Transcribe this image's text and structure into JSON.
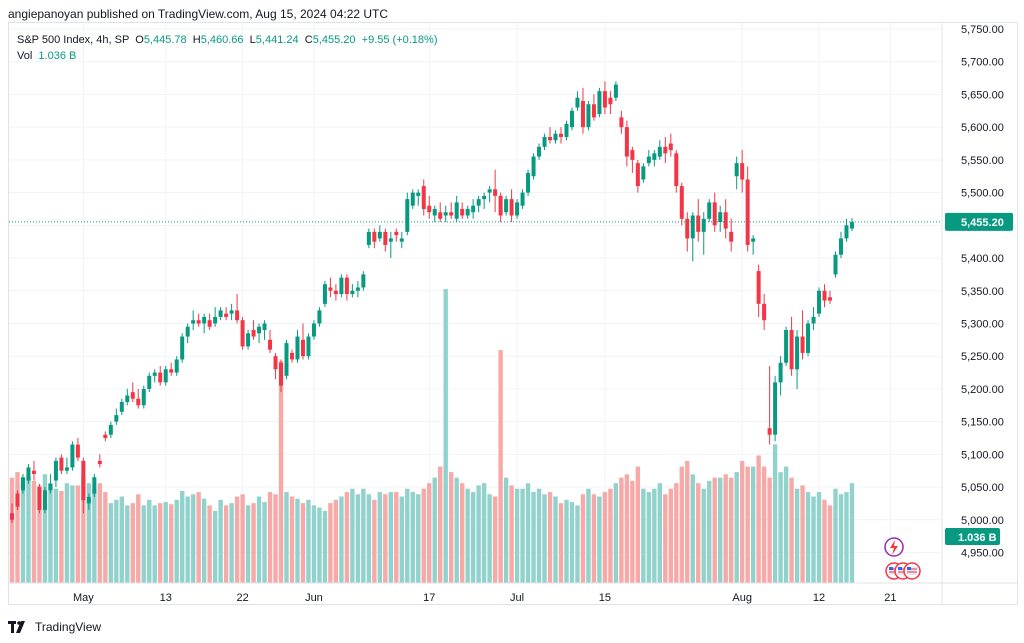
{
  "header": {
    "published": "angiepanoyan published on TradingView.com, Aug 15, 2024 04:22 UTC"
  },
  "legend": {
    "symbol": "S&P 500 Index, 4h, SP",
    "o_label": "O",
    "o_value": "5,445.78",
    "h_label": "H",
    "h_value": "5,460.66",
    "l_label": "L",
    "l_value": "5,441.24",
    "c_label": "C",
    "c_value": "5,455.20",
    "change": "+9.55 (+0.18%)",
    "vol_label": "Vol",
    "vol_value": "1.036 B"
  },
  "footer": {
    "brand": "TradingView"
  },
  "colors": {
    "up": "#089981",
    "down": "#f23645",
    "vol_up": "#92d2cc",
    "vol_down": "#f7a9a7",
    "price_line": "#089981",
    "grid": "#f0f3fa",
    "axis_text": "#131722"
  },
  "chart_data": {
    "type": "candlestick",
    "title": "S&P 500 Index, 4h, SP",
    "ylim": [
      4910,
      5760
    ],
    "y_ticks": [
      4950,
      5000,
      5050,
      5100,
      5150,
      5200,
      5250,
      5300,
      5350,
      5400,
      5450,
      5500,
      5550,
      5600,
      5650,
      5700,
      5750
    ],
    "y_tick_labels": [
      "4,950.00",
      "5,000.00",
      "5,050.00",
      "5,100.00",
      "5,150.00",
      "5,200.00",
      "5,250.00",
      "5,300.00",
      "5,350.00",
      "5,400.00",
      "5,450.00",
      "5,500.00",
      "5,550.00",
      "5,600.00",
      "5,650.00",
      "5,700.00",
      "5,750.00"
    ],
    "x_tick_labels": [
      {
        "label": "May",
        "bar": 13
      },
      {
        "label": "13",
        "bar": 28
      },
      {
        "label": "22",
        "bar": 42
      },
      {
        "label": "Jun",
        "bar": 55
      },
      {
        "label": "17",
        "bar": 76
      },
      {
        "label": "Jul",
        "bar": 92
      },
      {
        "label": "15",
        "bar": 108
      },
      {
        "label": "Aug",
        "bar": 133
      },
      {
        "label": "12",
        "bar": 147
      },
      {
        "label": "21",
        "bar": 160
      }
    ],
    "last_price": 5455.2,
    "last_price_label": "5,455.20",
    "last_volume_label": "1.036 B",
    "volume_ylim": [
      0,
      1.1
    ],
    "candles": [
      [
        5010,
        5025,
        4995,
        5000,
        0.95
      ],
      [
        5040,
        5045,
        5015,
        5020,
        1.0
      ],
      [
        5045,
        5070,
        5040,
        5065,
        0.95
      ],
      [
        5060,
        5085,
        5055,
        5080,
        0.96
      ],
      [
        5075,
        5090,
        5060,
        5070,
        0.92
      ],
      [
        5050,
        5055,
        5010,
        5015,
        0.88
      ],
      [
        5015,
        5050,
        5010,
        5045,
        0.98
      ],
      [
        5045,
        5070,
        5040,
        5055,
        0.9
      ],
      [
        5060,
        5095,
        5050,
        5090,
        0.85
      ],
      [
        5095,
        5100,
        5070,
        5075,
        0.83
      ],
      [
        5075,
        5095,
        5070,
        5080,
        0.9
      ],
      [
        5080,
        5120,
        5075,
        5115,
        0.88
      ],
      [
        5115,
        5125,
        5090,
        5095,
        0.88
      ],
      [
        5090,
        5095,
        5010,
        5030,
        0.95
      ],
      [
        5025,
        5040,
        5015,
        5035,
        0.9
      ],
      [
        5040,
        5070,
        5035,
        5065,
        0.85
      ],
      [
        5090,
        5100,
        5080,
        5085,
        0.9
      ],
      [
        5130,
        5135,
        5120,
        5125,
        0.82
      ],
      [
        5130,
        5150,
        5125,
        5145,
        0.72
      ],
      [
        5150,
        5170,
        5145,
        5160,
        0.75
      ],
      [
        5165,
        5185,
        5160,
        5180,
        0.78
      ],
      [
        5180,
        5200,
        5175,
        5190,
        0.7
      ],
      [
        5195,
        5210,
        5180,
        5185,
        0.72
      ],
      [
        5185,
        5200,
        5170,
        5175,
        0.8
      ],
      [
        5175,
        5205,
        5170,
        5200,
        0.7
      ],
      [
        5200,
        5225,
        5195,
        5220,
        0.75
      ],
      [
        5220,
        5230,
        5210,
        5225,
        0.7
      ],
      [
        5225,
        5235,
        5205,
        5210,
        0.72
      ],
      [
        5210,
        5235,
        5205,
        5230,
        0.73
      ],
      [
        5230,
        5240,
        5220,
        5225,
        0.71
      ],
      [
        5225,
        5250,
        5220,
        5245,
        0.75
      ],
      [
        5245,
        5285,
        5240,
        5280,
        0.83
      ],
      [
        5280,
        5300,
        5270,
        5295,
        0.78
      ],
      [
        5300,
        5320,
        5290,
        5305,
        0.8
      ],
      [
        5305,
        5315,
        5295,
        5300,
        0.82
      ],
      [
        5300,
        5315,
        5285,
        5310,
        0.76
      ],
      [
        5305,
        5315,
        5290,
        5295,
        0.7
      ],
      [
        5300,
        5325,
        5295,
        5310,
        0.65
      ],
      [
        5310,
        5325,
        5305,
        5320,
        0.75
      ],
      [
        5315,
        5325,
        5305,
        5310,
        0.7
      ],
      [
        5315,
        5330,
        5305,
        5320,
        0.72
      ],
      [
        5320,
        5345,
        5300,
        5305,
        0.78
      ],
      [
        5305,
        5310,
        5260,
        5265,
        0.8
      ],
      [
        5265,
        5290,
        5260,
        5285,
        0.7
      ],
      [
        5290,
        5305,
        5275,
        5280,
        0.72
      ],
      [
        5285,
        5300,
        5270,
        5295,
        0.78
      ],
      [
        5290,
        5305,
        5275,
        5300,
        0.73
      ],
      [
        5275,
        5290,
        5255,
        5260,
        0.82
      ],
      [
        5250,
        5255,
        5215,
        5230,
        0.8
      ],
      [
        5240,
        5245,
        5195,
        5205,
        2.0
      ],
      [
        5220,
        5275,
        5215,
        5270,
        0.82
      ],
      [
        5255,
        5260,
        5240,
        5245,
        0.78
      ],
      [
        5245,
        5290,
        5240,
        5280,
        0.76
      ],
      [
        5275,
        5300,
        5245,
        5250,
        0.72
      ],
      [
        5250,
        5285,
        5245,
        5280,
        0.75
      ],
      [
        5280,
        5305,
        5275,
        5300,
        0.7
      ],
      [
        5300,
        5325,
        5295,
        5320,
        0.68
      ],
      [
        5330,
        5365,
        5325,
        5360,
        0.65
      ],
      [
        5355,
        5370,
        5340,
        5350,
        0.72
      ],
      [
        5350,
        5360,
        5335,
        5345,
        0.75
      ],
      [
        5345,
        5375,
        5340,
        5370,
        0.78
      ],
      [
        5370,
        5375,
        5335,
        5345,
        0.82
      ],
      [
        5345,
        5360,
        5340,
        5350,
        0.85
      ],
      [
        5350,
        5365,
        5340,
        5355,
        0.8
      ],
      [
        5355,
        5380,
        5350,
        5375,
        0.85
      ],
      [
        5420,
        5445,
        5415,
        5440,
        0.8
      ],
      [
        5440,
        5445,
        5415,
        5425,
        0.75
      ],
      [
        5430,
        5450,
        5425,
        5440,
        0.82
      ],
      [
        5440,
        5445,
        5410,
        5420,
        0.8
      ],
      [
        5425,
        5440,
        5400,
        5430,
        0.82
      ],
      [
        5440,
        5445,
        5425,
        5435,
        0.82
      ],
      [
        5425,
        5440,
        5415,
        5430,
        0.78
      ],
      [
        5440,
        5500,
        5435,
        5490,
        0.85
      ],
      [
        5480,
        5505,
        5475,
        5500,
        0.82
      ],
      [
        5495,
        5505,
        5480,
        5500,
        0.8
      ],
      [
        5510,
        5520,
        5465,
        5475,
        0.85
      ],
      [
        5480,
        5495,
        5460,
        5470,
        0.9
      ],
      [
        5465,
        5480,
        5455,
        5475,
        0.95
      ],
      [
        5470,
        5485,
        5455,
        5460,
        1.05
      ],
      [
        5465,
        5480,
        5455,
        5470,
        2.65
      ],
      [
        5470,
        5485,
        5460,
        5465,
        1.0
      ],
      [
        5460,
        5495,
        5455,
        5485,
        0.95
      ],
      [
        5475,
        5485,
        5460,
        5465,
        0.9
      ],
      [
        5465,
        5480,
        5460,
        5475,
        0.85
      ],
      [
        5470,
        5490,
        5460,
        5480,
        0.82
      ],
      [
        5480,
        5495,
        5470,
        5490,
        0.88
      ],
      [
        5490,
        5500,
        5475,
        5495,
        0.9
      ],
      [
        5500,
        5510,
        5485,
        5505,
        0.8
      ],
      [
        5505,
        5535,
        5470,
        5495,
        0.78
      ],
      [
        5495,
        5500,
        5455,
        5465,
        2.1
      ],
      [
        5470,
        5495,
        5465,
        5490,
        0.95
      ],
      [
        5490,
        5505,
        5455,
        5465,
        0.88
      ],
      [
        5465,
        5490,
        5460,
        5485,
        0.85
      ],
      [
        5480,
        5505,
        5475,
        5500,
        0.85
      ],
      [
        5500,
        5535,
        5495,
        5530,
        0.9
      ],
      [
        5525,
        5560,
        5520,
        5555,
        0.82
      ],
      [
        5555,
        5575,
        5550,
        5570,
        0.85
      ],
      [
        5570,
        5590,
        5565,
        5585,
        0.8
      ],
      [
        5585,
        5600,
        5575,
        5580,
        0.82
      ],
      [
        5580,
        5595,
        5575,
        5590,
        0.78
      ],
      [
        5590,
        5600,
        5575,
        5585,
        0.72
      ],
      [
        5585,
        5610,
        5580,
        5605,
        0.75
      ],
      [
        5600,
        5630,
        5595,
        5625,
        0.73
      ],
      [
        5630,
        5655,
        5625,
        5645,
        0.7
      ],
      [
        5640,
        5660,
        5590,
        5600,
        0.8
      ],
      [
        5600,
        5640,
        5595,
        5635,
        0.85
      ],
      [
        5635,
        5650,
        5610,
        5615,
        0.8
      ],
      [
        5620,
        5660,
        5615,
        5655,
        0.78
      ],
      [
        5655,
        5670,
        5620,
        5630,
        0.82
      ],
      [
        5645,
        5655,
        5620,
        5635,
        0.85
      ],
      [
        5645,
        5670,
        5640,
        5665,
        0.9
      ],
      [
        5615,
        5625,
        5590,
        5600,
        0.95
      ],
      [
        5600,
        5610,
        5540,
        5555,
        0.98
      ],
      [
        5565,
        5570,
        5530,
        5550,
        0.92
      ],
      [
        5545,
        5550,
        5500,
        5510,
        1.05
      ],
      [
        5520,
        5545,
        5515,
        5540,
        0.85
      ],
      [
        5545,
        5565,
        5540,
        5555,
        0.82
      ],
      [
        5550,
        5565,
        5540,
        5560,
        0.85
      ],
      [
        5555,
        5580,
        5550,
        5570,
        0.9
      ],
      [
        5570,
        5585,
        5545,
        5560,
        0.8
      ],
      [
        5575,
        5590,
        5555,
        5565,
        0.85
      ],
      [
        5560,
        5565,
        5500,
        5510,
        0.9
      ],
      [
        5510,
        5515,
        5450,
        5460,
        1.05
      ],
      [
        5460,
        5470,
        5410,
        5430,
        1.1
      ],
      [
        5430,
        5470,
        5395,
        5465,
        0.98
      ],
      [
        5465,
        5490,
        5425,
        5440,
        0.9
      ],
      [
        5440,
        5470,
        5405,
        5460,
        0.85
      ],
      [
        5460,
        5490,
        5455,
        5485,
        0.92
      ],
      [
        5485,
        5500,
        5440,
        5450,
        0.95
      ],
      [
        5455,
        5480,
        5440,
        5470,
        0.95
      ],
      [
        5470,
        5490,
        5430,
        5445,
        0.98
      ],
      [
        5440,
        5460,
        5410,
        5425,
        0.95
      ],
      [
        5525,
        5555,
        5505,
        5545,
        1.0
      ],
      [
        5545,
        5565,
        5500,
        5520,
        1.1
      ],
      [
        5520,
        5540,
        5410,
        5420,
        1.05
      ],
      [
        5425,
        5435,
        5405,
        5430,
        1.05
      ],
      [
        5380,
        5390,
        5310,
        5330,
        1.15
      ],
      [
        5330,
        5345,
        5290,
        5305,
        1.05
      ],
      [
        5140,
        5235,
        5115,
        5130,
        0.95
      ],
      [
        5130,
        5220,
        5120,
        5210,
        1.25
      ],
      [
        5210,
        5250,
        5190,
        5240,
        1.0
      ],
      [
        5240,
        5295,
        5235,
        5290,
        1.05
      ],
      [
        5290,
        5310,
        5220,
        5230,
        0.95
      ],
      [
        5230,
        5290,
        5200,
        5280,
        0.85
      ],
      [
        5280,
        5320,
        5245,
        5255,
        0.88
      ],
      [
        5255,
        5305,
        5250,
        5300,
        0.82
      ],
      [
        5300,
        5325,
        5290,
        5310,
        0.78
      ],
      [
        5315,
        5355,
        5310,
        5350,
        0.82
      ],
      [
        5350,
        5360,
        5325,
        5335,
        0.75
      ],
      [
        5340,
        5350,
        5330,
        5335,
        0.7
      ],
      [
        5375,
        5410,
        5370,
        5405,
        0.85
      ],
      [
        5405,
        5440,
        5400,
        5430,
        0.8
      ],
      [
        5430,
        5460,
        5425,
        5450,
        0.82
      ],
      [
        5445,
        5461,
        5441,
        5455,
        0.9
      ]
    ]
  }
}
